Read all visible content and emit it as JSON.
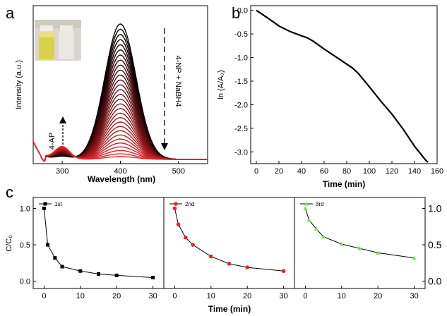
{
  "panel_labels": [
    "a",
    "b",
    "c"
  ],
  "chart_data": [
    {
      "type": "line",
      "panel": "a",
      "xlabel": "Wavelength (nm)",
      "ylabel": "Intensity (a.u.)",
      "xlim": [
        250,
        550
      ],
      "xticks": [
        300,
        400,
        500
      ],
      "annotations": [
        "4-AP",
        "4-NP + NaBH4"
      ],
      "curve_count": 30,
      "peak_wavelength": 400,
      "secondary_peak_wavelength": 300,
      "colors": {
        "start": "#000000",
        "end": "#e8242b"
      }
    },
    {
      "type": "line",
      "panel": "b",
      "xlabel": "Time (min)",
      "ylabel": "ln (A/A₀)",
      "xlim": [
        -5,
        160
      ],
      "ylim": [
        -3.25,
        0.1
      ],
      "xticks": [
        0,
        20,
        40,
        60,
        80,
        100,
        120,
        140,
        160
      ],
      "yticks": [
        "0.0",
        "-0.5",
        "-1.0",
        "-1.5",
        "-2.0",
        "-2.5",
        "-3.0"
      ],
      "x": [
        0,
        10,
        20,
        30,
        40,
        45,
        50,
        60,
        70,
        80,
        85,
        90,
        100,
        110,
        120,
        130,
        140,
        150,
        152
      ],
      "y": [
        0,
        -0.16,
        -0.33,
        -0.45,
        -0.54,
        -0.58,
        -0.65,
        -0.82,
        -0.98,
        -1.14,
        -1.22,
        -1.33,
        -1.62,
        -1.92,
        -2.2,
        -2.52,
        -2.88,
        -3.18,
        -3.22
      ]
    },
    {
      "type": "line",
      "panel": "c",
      "xlabel": "Time (min)",
      "ylabel": "C/C₀",
      "xlim": [
        -3,
        33
      ],
      "ylim": [
        -0.1,
        1.15
      ],
      "xticks": [
        0,
        10,
        20,
        30
      ],
      "yticks": [
        "0.0",
        "0.5",
        "1.0"
      ],
      "x": [
        0,
        1,
        3,
        5,
        10,
        15,
        20,
        30
      ],
      "series": [
        {
          "name": "1st",
          "color": "#000000",
          "marker": "square",
          "values": [
            1.0,
            0.5,
            0.32,
            0.2,
            0.14,
            0.1,
            0.08,
            0.05
          ]
        },
        {
          "name": "2nd",
          "color": "#e8242b",
          "marker": "circle",
          "values": [
            1.0,
            0.78,
            0.6,
            0.5,
            0.34,
            0.24,
            0.19,
            0.14
          ]
        },
        {
          "name": "3rd",
          "color": "#7ed957",
          "marker": "triangle",
          "values": [
            1.0,
            0.84,
            0.72,
            0.61,
            0.51,
            0.45,
            0.39,
            0.32
          ]
        }
      ]
    }
  ]
}
